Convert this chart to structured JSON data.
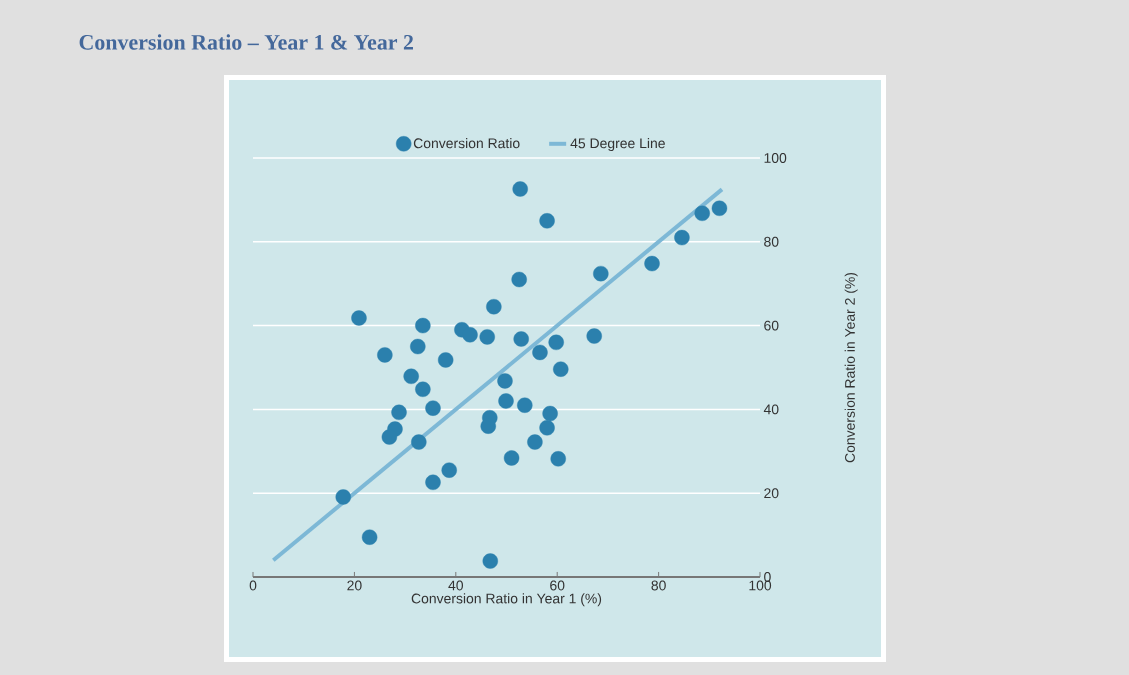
{
  "chart_data": {
    "type": "scatter",
    "title": "Conversion Ratio – Year 1 & Year 2",
    "xlabel": "Conversion Ratio in Year 1 (%)",
    "ylabel": "Conversion Ratio in Year 2 (%)",
    "xlim": [
      0,
      100
    ],
    "ylim": [
      0,
      100
    ],
    "xticks": [
      0,
      20,
      40,
      60,
      80,
      100
    ],
    "yticks": [
      0,
      20,
      40,
      60,
      80,
      100
    ],
    "grid": "y",
    "legend": "top",
    "marker": "circle",
    "series": [
      {
        "name": "Conversion Ratio",
        "color": "#2b80ad",
        "x": [
          52.7,
          58,
          68.6,
          78.7,
          84.6,
          88.6,
          92,
          52.5,
          47.5,
          20.9,
          33.5,
          41.2,
          42.8,
          46.2,
          52.9,
          67.3,
          32.5,
          38,
          26,
          56.6,
          59.8,
          60.7,
          31.2,
          33.5,
          35.5,
          28.8,
          28,
          26.9,
          32.7,
          49.7,
          49.9,
          53.6,
          46.7,
          46.4,
          58.6,
          58,
          55.6,
          51,
          60.2,
          38.7,
          35.5,
          17.8,
          23,
          46.8
        ],
        "values": [
          92.6,
          85,
          72.4,
          74.8,
          81,
          86.8,
          88,
          71,
          64.5,
          61.8,
          60,
          59,
          57.8,
          57.3,
          56.8,
          57.5,
          55,
          51.8,
          53,
          53.6,
          56,
          49.6,
          47.9,
          44.8,
          40.3,
          39.3,
          35.3,
          33.4,
          32.2,
          46.8,
          42,
          41,
          38,
          36,
          39,
          35.6,
          32.2,
          28.4,
          28.2,
          25.5,
          22.6,
          19.1,
          9.5,
          3.8
        ]
      },
      {
        "name": "45 Degree Line",
        "type": "line",
        "color": "#7db8d6",
        "marker": "none",
        "x": [
          4,
          92.5
        ],
        "values": [
          4,
          92.5
        ]
      }
    ]
  }
}
